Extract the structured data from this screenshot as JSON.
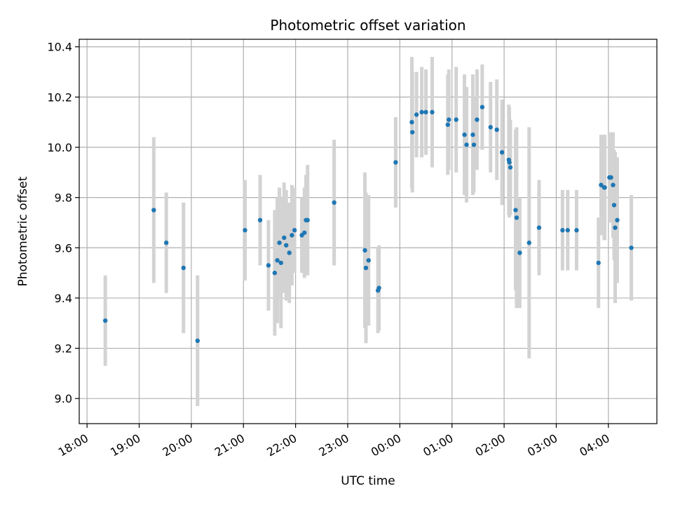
{
  "chart_data": {
    "type": "scatter",
    "title": "Photometric offset variation",
    "xlabel": "UTC time",
    "ylabel": "Photometric offset",
    "ylim": [
      8.9,
      10.43
    ],
    "yticks": [
      9.0,
      9.2,
      9.4,
      9.6,
      9.8,
      10.0,
      10.2,
      10.4
    ],
    "ytick_labels": [
      "9.0",
      "9.2",
      "9.4",
      "9.6",
      "9.8",
      "10.0",
      "10.2",
      "10.4"
    ],
    "xticks": [
      -6,
      -5,
      -4,
      -3,
      -2,
      -1,
      0,
      1,
      2,
      3,
      4
    ],
    "xtick_labels": [
      "18:00",
      "19:00",
      "20:00",
      "21:00",
      "22:00",
      "23:00",
      "00:00",
      "01:00",
      "02:00",
      "03:00",
      "04:00"
    ],
    "xlim": [
      -6.15,
      4.93
    ],
    "grid": true,
    "point_color": "#1f77b4",
    "errorbar_color": "#d3d3d3",
    "series": [
      {
        "x": [
          -5.65,
          -4.72,
          -4.48,
          -4.15,
          -3.88,
          -2.97,
          -2.68,
          -2.52,
          -2.4,
          -2.35,
          -2.31,
          -2.28,
          -2.22,
          -2.18,
          -2.12,
          -2.07,
          -2.02,
          -1.88,
          -1.83,
          -1.8,
          -1.77,
          -1.26,
          -0.67,
          -0.65,
          -0.6,
          -0.42,
          -0.4,
          -0.08,
          0.23,
          0.24,
          0.32,
          0.42,
          0.5,
          0.62,
          0.92,
          0.94,
          1.08,
          1.24,
          1.28,
          1.4,
          1.42,
          1.48,
          1.58,
          1.74,
          1.86,
          1.96,
          2.09,
          2.1,
          2.12,
          2.22,
          2.24,
          2.3,
          2.48,
          2.67,
          3.12,
          3.22,
          3.39,
          3.81,
          3.86,
          3.92,
          3.93,
          4.02,
          4.05,
          4.09,
          4.11,
          4.13,
          4.17,
          4.44
        ],
        "y": [
          9.31,
          9.75,
          9.62,
          9.52,
          9.23,
          9.67,
          9.71,
          9.53,
          9.5,
          9.55,
          9.62,
          9.54,
          9.64,
          9.61,
          9.58,
          9.65,
          9.67,
          9.65,
          9.66,
          9.71,
          9.71,
          9.78,
          9.59,
          9.52,
          9.55,
          9.43,
          9.44,
          9.94,
          10.1,
          10.06,
          10.13,
          10.14,
          10.14,
          10.14,
          10.09,
          10.11,
          10.11,
          10.05,
          10.01,
          10.05,
          10.01,
          10.11,
          10.16,
          10.08,
          10.07,
          9.98,
          9.95,
          9.94,
          9.92,
          9.75,
          9.72,
          9.58,
          9.62,
          9.68,
          9.67,
          9.67,
          9.67,
          9.54,
          9.85,
          9.84,
          9.84,
          9.88,
          9.88,
          9.85,
          9.77,
          9.68,
          9.71,
          9.6
        ],
        "yerr": [
          0.18,
          0.29,
          0.2,
          0.26,
          0.26,
          0.2,
          0.18,
          0.18,
          0.25,
          0.25,
          0.22,
          0.26,
          0.22,
          0.22,
          0.2,
          0.2,
          0.17,
          0.15,
          0.18,
          0.18,
          0.22,
          0.25,
          0.31,
          0.3,
          0.26,
          0.17,
          0.17,
          0.18,
          0.26,
          0.24,
          0.17,
          0.18,
          0.17,
          0.22,
          0.2,
          0.2,
          0.21,
          0.24,
          0.23,
          0.24,
          0.19,
          0.2,
          0.17,
          0.18,
          0.2,
          0.21,
          0.22,
          0.22,
          0.19,
          0.32,
          0.36,
          0.22,
          0.46,
          0.19,
          0.16,
          0.16,
          0.16,
          0.18,
          0.2,
          0.21,
          0.21,
          0.18,
          0.18,
          0.21,
          0.22,
          0.3,
          0.25,
          0.21
        ]
      }
    ]
  }
}
